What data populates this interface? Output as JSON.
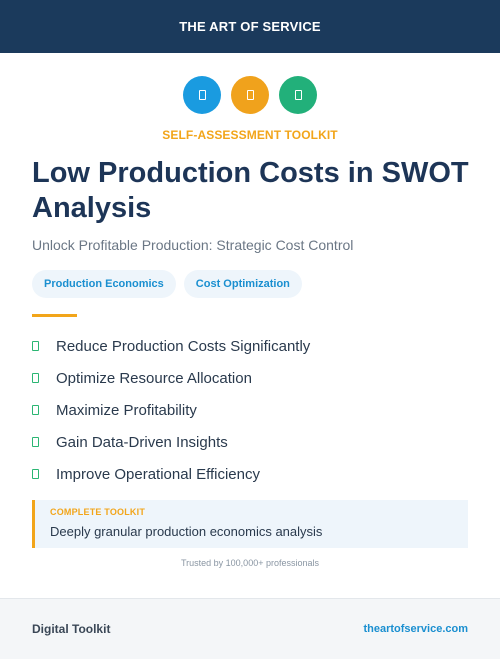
{
  "header": {
    "brand": "THE ART OF SERVICE",
    "background": "#1b3a5c"
  },
  "icons": [
    {
      "name": "blue-badge-icon",
      "color": "#1a9be0"
    },
    {
      "name": "orange-badge-icon",
      "color": "#f0a21c"
    },
    {
      "name": "green-badge-icon",
      "color": "#22b07a"
    }
  ],
  "eyebrow": "SELF-ASSESSMENT TOOLKIT",
  "title": "Low Production Costs in SWOT Analysis",
  "subtitle": "Unlock Profitable Production: Strategic Cost Control",
  "tags": [
    "Production Economics",
    "Cost Optimization"
  ],
  "features": [
    "Reduce Production Costs Significantly",
    "Optimize Resource Allocation",
    "Maximize Profitability",
    "Gain Data-Driven Insights",
    "Improve Operational Efficiency"
  ],
  "callout": {
    "label": "COMPLETE TOOLKIT",
    "description": "Deeply granular production economics analysis"
  },
  "trusted": "Trusted by 100,000+ professionals",
  "footer": {
    "left": "Digital Toolkit",
    "right": "theartofservice.com"
  },
  "colors": {
    "accent": "#f2a51a",
    "link": "#1a8fd0",
    "check": "#2bb673",
    "navy": "#1d3557"
  }
}
